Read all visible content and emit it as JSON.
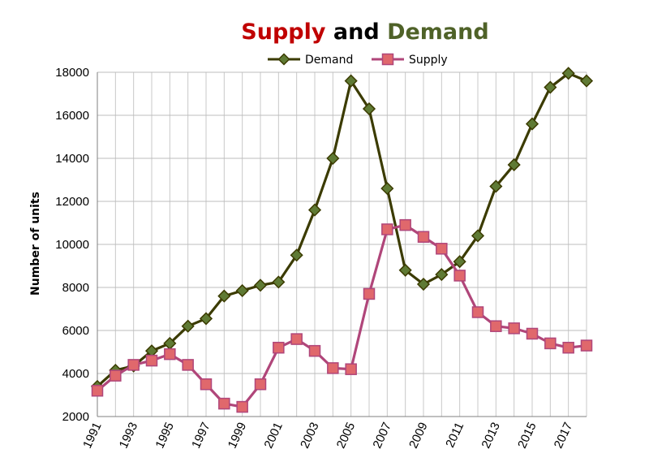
{
  "chart_data": {
    "type": "line",
    "title_parts": [
      {
        "text": "Supply",
        "color": "#c00000"
      },
      {
        "text": " and ",
        "color": "#000000"
      },
      {
        "text": "Demand",
        "color": "#4f6228"
      }
    ],
    "xlabel": "",
    "ylabel": "Number of units",
    "ylim": [
      2000,
      18000
    ],
    "yticks": [
      2000,
      4000,
      6000,
      8000,
      10000,
      12000,
      14000,
      16000,
      18000
    ],
    "xlim": [
      1991,
      2018
    ],
    "xtick_labels": [
      "1991",
      "1993",
      "1995",
      "1997",
      "1999",
      "2001",
      "2003",
      "2005",
      "2007",
      "2009",
      "2011",
      "2013",
      "2015",
      "2017"
    ],
    "grid": true,
    "legend_position": "top",
    "x": [
      1991,
      1992,
      1993,
      1994,
      1995,
      1996,
      1997,
      1998,
      1999,
      2000,
      2001,
      2002,
      2003,
      2004,
      2005,
      2006,
      2007,
      2008,
      2009,
      2010,
      2011,
      2012,
      2013,
      2014,
      2015,
      2016,
      2017,
      2018
    ],
    "series": [
      {
        "name": "Demand",
        "color": "#3b3b00",
        "marker_fill": "#5f7a34",
        "marker": "diamond",
        "values": [
          3400,
          4150,
          4350,
          5050,
          5400,
          6200,
          6550,
          7600,
          7850,
          8100,
          8250,
          9500,
          11600,
          14000,
          17600,
          16300,
          12600,
          8800,
          8150,
          8600,
          9200,
          10400,
          12700,
          13700,
          15600,
          17300,
          17950,
          17600
        ]
      },
      {
        "name": "Supply",
        "color": "#b0467a",
        "marker_fill": "#e0686c",
        "marker": "square",
        "values": [
          3200,
          3900,
          4400,
          4600,
          4900,
          4400,
          3500,
          2600,
          2450,
          3500,
          5200,
          5600,
          5050,
          4250,
          4200,
          7700,
          10700,
          10900,
          10350,
          9800,
          8550,
          6850,
          6200,
          6100,
          5850,
          5400,
          5200,
          5300
        ]
      }
    ]
  }
}
